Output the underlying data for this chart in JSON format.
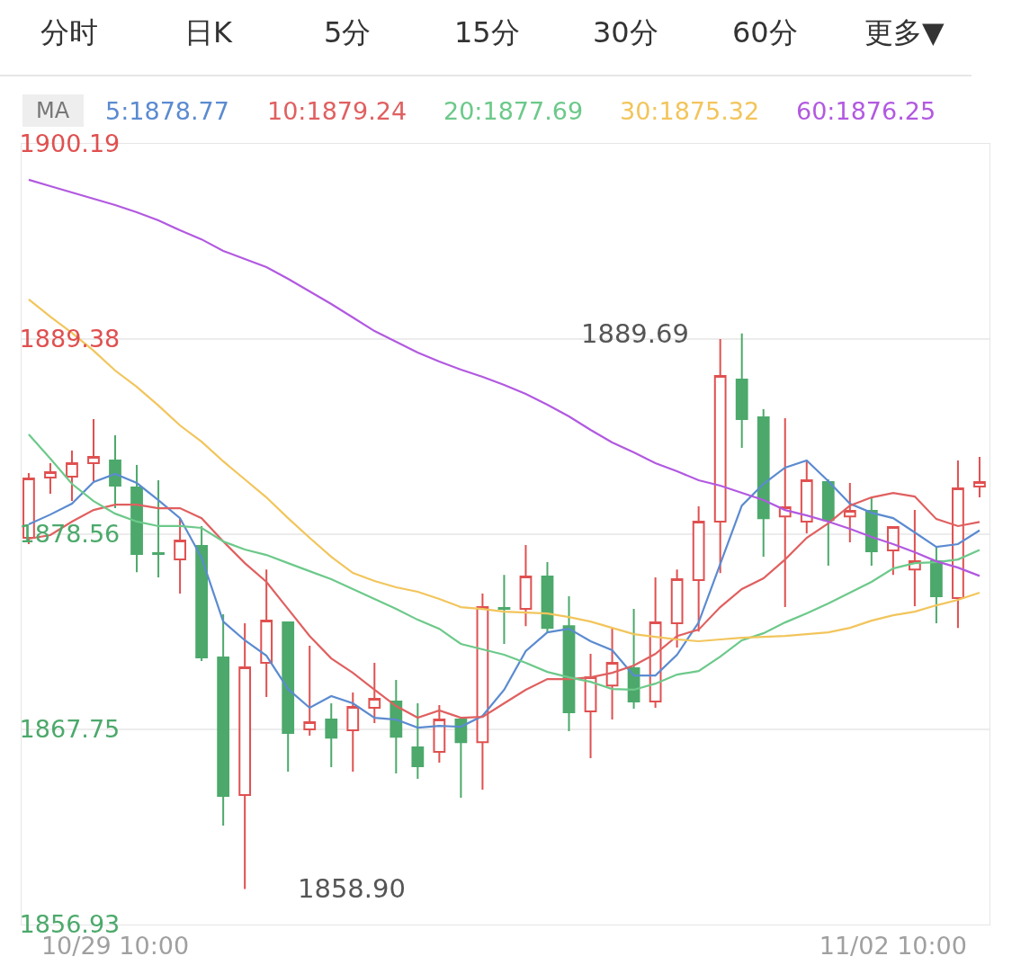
{
  "chart_data": {
    "type": "candlestick",
    "categories": [
      null,
      null,
      null,
      null,
      "10/29 10:00",
      null,
      null,
      null,
      null,
      null,
      null,
      null,
      null,
      null,
      null,
      null,
      null,
      null,
      null,
      null,
      null,
      null,
      null,
      null,
      null,
      null,
      null,
      null,
      null,
      null,
      null,
      null,
      null,
      null,
      null,
      null,
      null,
      null,
      null,
      null,
      "11/02 10:00",
      null,
      null,
      null,
      null
    ],
    "ohlc": [
      [
        1878.36,
        1881.95,
        1878.01,
        1881.65
      ],
      [
        1881.7,
        1882.5,
        1880.8,
        1882.0
      ],
      [
        1881.75,
        1883.19,
        1880.4,
        1882.5
      ],
      [
        1882.5,
        1884.94,
        1881.5,
        1882.84
      ],
      [
        1882.65,
        1884.04,
        1880.0,
        1881.25
      ],
      [
        1881.15,
        1882.4,
        1876.46,
        1877.46
      ],
      [
        1877.51,
        1881.55,
        1876.17,
        1877.46
      ],
      [
        1877.16,
        1879.45,
        1875.27,
        1878.21
      ],
      [
        1877.91,
        1879.01,
        1871.53,
        1871.73
      ],
      [
        1871.73,
        1874.12,
        1862.41,
        1864.06
      ],
      [
        1864.11,
        1873.62,
        1858.9,
        1871.18
      ],
      [
        1871.43,
        1876.61,
        1869.54,
        1873.77
      ],
      [
        1873.67,
        1873.72,
        1865.4,
        1867.54
      ],
      [
        1867.74,
        1872.38,
        1867.39,
        1868.14
      ],
      [
        1868.29,
        1869.19,
        1865.65,
        1867.29
      ],
      [
        1867.69,
        1869.79,
        1865.4,
        1868.99
      ],
      [
        1868.94,
        1871.43,
        1868.09,
        1869.44
      ],
      [
        1869.29,
        1870.48,
        1865.3,
        1867.34
      ],
      [
        1866.75,
        1869.19,
        1865.0,
        1865.7
      ],
      [
        1866.5,
        1869.09,
        1865.9,
        1868.29
      ],
      [
        1868.29,
        1868.34,
        1863.96,
        1867.04
      ],
      [
        1867.04,
        1875.27,
        1864.41,
        1874.52
      ],
      [
        1874.47,
        1876.31,
        1872.48,
        1874.42
      ],
      [
        1874.42,
        1877.96,
        1873.47,
        1876.22
      ],
      [
        1876.22,
        1877.01,
        1873.12,
        1873.37
      ],
      [
        1873.47,
        1875.12,
        1867.64,
        1868.69
      ],
      [
        1868.74,
        1871.93,
        1866.15,
        1870.63
      ],
      [
        1870.18,
        1873.37,
        1868.29,
        1871.43
      ],
      [
        1871.13,
        1874.42,
        1868.89,
        1869.29
      ],
      [
        1869.29,
        1876.17,
        1868.94,
        1873.67
      ],
      [
        1873.62,
        1876.61,
        1872.28,
        1876.07
      ],
      [
        1876.02,
        1880.1,
        1873.17,
        1879.26
      ],
      [
        1879.26,
        1889.38,
        1876.41,
        1887.33
      ],
      [
        1887.13,
        1889.69,
        1883.34,
        1884.94
      ],
      [
        1885.04,
        1885.49,
        1877.31,
        1879.45
      ],
      [
        1879.55,
        1884.99,
        1874.52,
        1880.05
      ],
      [
        1879.26,
        1882.65,
        1878.61,
        1881.55
      ],
      [
        1881.45,
        1881.6,
        1876.81,
        1879.35
      ],
      [
        1879.55,
        1881.4,
        1878.11,
        1879.85
      ],
      [
        1879.85,
        1880.6,
        1876.81,
        1877.61
      ],
      [
        1877.66,
        1878.96,
        1876.31,
        1878.96
      ],
      [
        1876.61,
        1879.9,
        1874.57,
        1877.06
      ],
      [
        1877.06,
        1877.86,
        1873.62,
        1875.12
      ],
      [
        1875.02,
        1882.65,
        1873.37,
        1881.1
      ],
      [
        1881.2,
        1882.84,
        1880.6,
        1881.45
      ]
    ],
    "series": [
      {
        "name": "5:1878.77",
        "type": "line",
        "color": "#5b8bd0",
        "values": [
          1879.11,
          1879.65,
          1880.25,
          1881.45,
          1881.9,
          1881.4,
          1880.45,
          1879.45,
          1877.26,
          1873.72,
          1872.68,
          1871.83,
          1869.98,
          1868.94,
          1869.59,
          1869.19,
          1868.39,
          1868.29,
          1867.84,
          1867.94,
          1867.89,
          1868.49,
          1869.94,
          1872.08,
          1873.12,
          1873.32,
          1872.63,
          1872.13,
          1870.73,
          1870.73,
          1871.88,
          1873.67,
          1876.91,
          1880.15,
          1881.35,
          1882.25,
          1882.65,
          1881.5,
          1880.25,
          1879.75,
          1879.45,
          1878.66,
          1877.86,
          1878.01,
          1878.77
        ]
      },
      {
        "name": "10:1879.24",
        "type": "line",
        "color": "#e06060",
        "values": [
          1878.31,
          1878.51,
          1879.26,
          1879.9,
          1880.2,
          1880.2,
          1880.0,
          1880.0,
          1879.45,
          1878.16,
          1876.96,
          1875.92,
          1874.42,
          1872.92,
          1871.68,
          1870.88,
          1869.94,
          1869.04,
          1868.39,
          1868.79,
          1868.39,
          1868.44,
          1869.19,
          1869.94,
          1870.53,
          1870.53,
          1870.63,
          1870.88,
          1871.28,
          1871.93,
          1872.92,
          1873.27,
          1874.52,
          1875.52,
          1876.12,
          1877.16,
          1878.36,
          1879.16,
          1880.15,
          1880.6,
          1880.85,
          1880.65,
          1879.4,
          1879.01,
          1879.24
        ]
      },
      {
        "name": "20:1877.69",
        "type": "line",
        "color": "#6cc98a",
        "values": [
          1884.09,
          1882.75,
          1881.35,
          1880.4,
          1879.7,
          1879.26,
          1879.01,
          1879.01,
          1878.91,
          1878.16,
          1877.71,
          1877.41,
          1876.96,
          1876.51,
          1876.07,
          1875.52,
          1874.97,
          1874.42,
          1873.82,
          1873.32,
          1872.48,
          1872.18,
          1871.88,
          1871.43,
          1870.93,
          1870.63,
          1870.38,
          1869.98,
          1869.94,
          1870.28,
          1870.78,
          1870.98,
          1871.78,
          1872.68,
          1873.07,
          1873.67,
          1874.17,
          1874.72,
          1875.32,
          1875.92,
          1876.66,
          1876.96,
          1877.01,
          1877.16,
          1877.69
        ]
      },
      {
        "name": "30:1875.32",
        "type": "line",
        "color": "#f2c55c",
        "values": [
          1891.57,
          1890.62,
          1889.72,
          1888.73,
          1887.63,
          1886.73,
          1885.69,
          1884.59,
          1883.69,
          1882.6,
          1881.6,
          1880.6,
          1879.45,
          1878.36,
          1877.31,
          1876.41,
          1875.97,
          1875.62,
          1875.37,
          1874.97,
          1874.52,
          1874.42,
          1874.27,
          1874.22,
          1874.17,
          1873.97,
          1873.72,
          1873.37,
          1873.02,
          1872.87,
          1872.73,
          1872.63,
          1872.73,
          1872.82,
          1872.87,
          1872.92,
          1873.02,
          1873.12,
          1873.37,
          1873.77,
          1874.07,
          1874.27,
          1874.62,
          1874.92,
          1875.32
        ]
      },
      {
        "name": "60:1876.25",
        "type": "line",
        "color": "#b259e0",
        "values": [
          1898.2,
          1897.85,
          1897.5,
          1897.15,
          1896.8,
          1896.4,
          1895.95,
          1895.4,
          1894.9,
          1894.26,
          1893.81,
          1893.36,
          1892.71,
          1892.02,
          1891.32,
          1890.57,
          1889.82,
          1889.23,
          1888.63,
          1888.13,
          1887.68,
          1887.28,
          1886.83,
          1886.33,
          1885.74,
          1885.09,
          1884.34,
          1883.64,
          1883.09,
          1882.5,
          1882.05,
          1881.55,
          1881.25,
          1880.85,
          1880.45,
          1879.9,
          1879.6,
          1879.26,
          1878.86,
          1878.41,
          1878.01,
          1877.56,
          1877.06,
          1876.71,
          1876.25
        ]
      }
    ],
    "ylim": [
      1856.93,
      1900.19
    ],
    "yticks": [
      1856.93,
      1867.75,
      1878.56,
      1889.38,
      1900.19
    ],
    "grid": "y",
    "legend": "top left",
    "legend_title": "MA",
    "annotations": [
      "分时",
      "日K",
      "5分",
      "15分",
      "30分",
      "60分",
      "更多▼",
      "1889.69",
      "1858.90"
    ]
  }
}
